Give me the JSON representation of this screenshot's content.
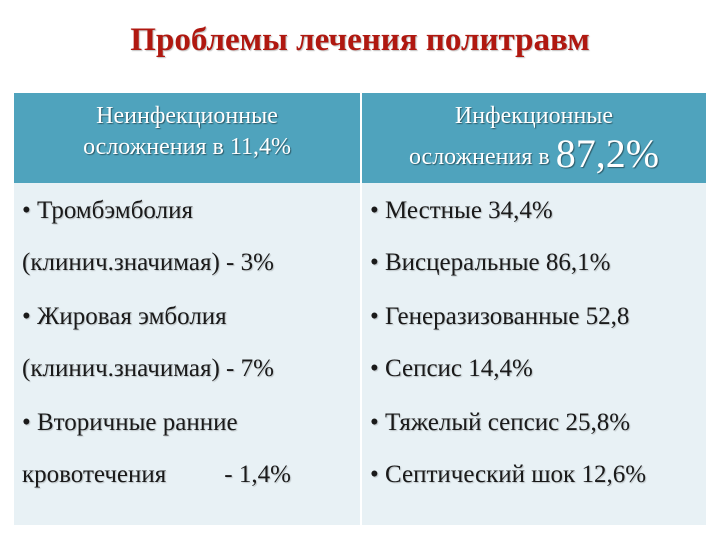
{
  "title": "Проблемы лечения политравм",
  "table": {
    "header_left": {
      "line1": "Неинфекционные",
      "line2": "осложнения в 11,4%"
    },
    "header_right": {
      "line1": "Инфекционные",
      "line2_prefix": "осложнения в ",
      "line2_value": "87,2%"
    },
    "left_lines": [
      "• Тромбэмболия",
      "(клинич.значимая)  - 3%",
      "• Жировая эмболия",
      "(клинич.значимая)  - 7%",
      "• Вторичные ранние"
    ],
    "left_last": {
      "text": "кровотечения",
      "value": "- 1,4%"
    },
    "right_lines": [
      "• Местные 34,4%",
      "• Висцеральные 86,1%",
      "• Генеразизованные 52,8",
      "• Сепсис 14,4%",
      "• Тяжелый сепсис 25,8%",
      "• Септический шок 12,6%"
    ]
  },
  "colors": {
    "title": "#b01810",
    "header_bg": "#4fa3bd",
    "body_bg": "#e8f1f5"
  }
}
